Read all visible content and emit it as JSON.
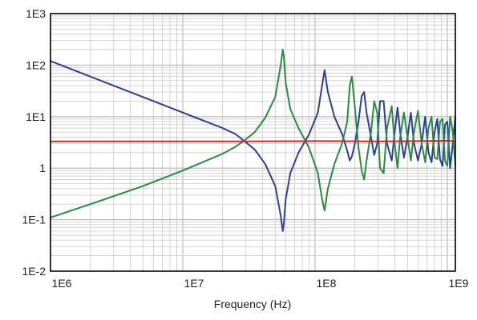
{
  "chart_data": {
    "type": "line",
    "title": "",
    "xlabel": "Frequency (Hz)",
    "ylabel": "",
    "x_scale": "log",
    "y_scale": "log",
    "xlim": [
      1000000,
      1150000000
    ],
    "ylim": [
      0.01,
      1000
    ],
    "grid": true,
    "legend": "none",
    "x_tick_labels": [
      "1E6",
      "1E7",
      "1E8",
      "1E9"
    ],
    "x_tick_values": [
      1000000,
      10000000,
      100000000,
      1000000000
    ],
    "y_tick_labels": [
      "1E-2",
      "1E-1",
      "1",
      "1E1",
      "1E2",
      "1E3"
    ],
    "y_tick_values": [
      0.01,
      0.1,
      1,
      10,
      100,
      1000
    ],
    "series": [
      {
        "color": "#2e3f9a",
        "x": [
          1000000,
          2000000,
          5000000,
          10000000,
          20000000,
          25000000,
          29000000,
          35000000,
          42000000,
          50000000,
          55000000,
          57000000,
          58000000,
          60000000,
          65000000,
          75000000,
          90000000,
          105000000,
          113000000,
          118000000,
          125000000,
          140000000,
          160000000,
          175000000,
          183000000,
          190000000,
          200000000,
          213000000,
          225000000,
          235000000,
          245000000,
          265000000,
          280000000,
          295000000,
          310000000,
          330000000,
          350000000,
          380000000,
          400000000,
          420000000,
          440000000,
          470000000,
          500000000,
          530000000,
          560000000,
          600000000,
          640000000,
          680000000,
          720000000,
          760000000,
          800000000,
          840000000,
          880000000,
          920000000,
          960000000,
          1000000000,
          1050000000,
          1100000000,
          1150000000
        ],
        "y": [
          120,
          60,
          24,
          12,
          6,
          4.6,
          3.4,
          2.3,
          1.2,
          0.45,
          0.12,
          0.06,
          0.08,
          0.25,
          0.8,
          2,
          4.5,
          12,
          40,
          80,
          30,
          10,
          4.6,
          2.2,
          1.4,
          1.7,
          3,
          8,
          25,
          30,
          12,
          4,
          1.8,
          3,
          20,
          20,
          3,
          1.4,
          5,
          15,
          5,
          1.6,
          4,
          12,
          3,
          1.4,
          3,
          10,
          2,
          1.3,
          5,
          9,
          1.5,
          1.1,
          7,
          8,
          1,
          3,
          10
        ]
      },
      {
        "color": "#2a8b40",
        "x": [
          1000000,
          2000000,
          5000000,
          10000000,
          20000000,
          25000000,
          29000000,
          35000000,
          42000000,
          50000000,
          55000000,
          57000000,
          58000000,
          60000000,
          65000000,
          75000000,
          90000000,
          105000000,
          113000000,
          118000000,
          125000000,
          140000000,
          160000000,
          175000000,
          183000000,
          190000000,
          200000000,
          213000000,
          225000000,
          235000000,
          245000000,
          265000000,
          280000000,
          295000000,
          310000000,
          330000000,
          350000000,
          380000000,
          400000000,
          420000000,
          440000000,
          470000000,
          500000000,
          530000000,
          560000000,
          600000000,
          640000000,
          680000000,
          720000000,
          760000000,
          800000000,
          840000000,
          880000000,
          920000000,
          960000000,
          1000000000,
          1050000000,
          1100000000,
          1150000000
        ],
        "y": [
          0.11,
          0.2,
          0.45,
          0.9,
          1.9,
          2.6,
          3.4,
          5,
          9.5,
          24,
          100,
          200,
          150,
          45,
          14,
          6,
          2.5,
          0.8,
          0.25,
          0.15,
          0.4,
          1.2,
          3,
          8,
          40,
          60,
          15,
          2.5,
          0.9,
          0.6,
          1.4,
          5,
          20,
          12,
          1,
          0.8,
          6,
          16,
          3,
          1,
          4,
          12,
          4,
          1.4,
          5,
          13,
          3,
          1.3,
          6,
          10,
          1.6,
          1.5,
          8,
          9,
          1.4,
          1.1,
          10,
          5,
          1.1
        ]
      },
      {
        "color": "#e0201a",
        "x": [
          1000000,
          10000000,
          30000000,
          100000000,
          300000000,
          1000000000,
          1150000000
        ],
        "y": [
          3.3,
          3.3,
          3.3,
          3.35,
          3.3,
          3.4,
          3.35
        ]
      }
    ]
  }
}
